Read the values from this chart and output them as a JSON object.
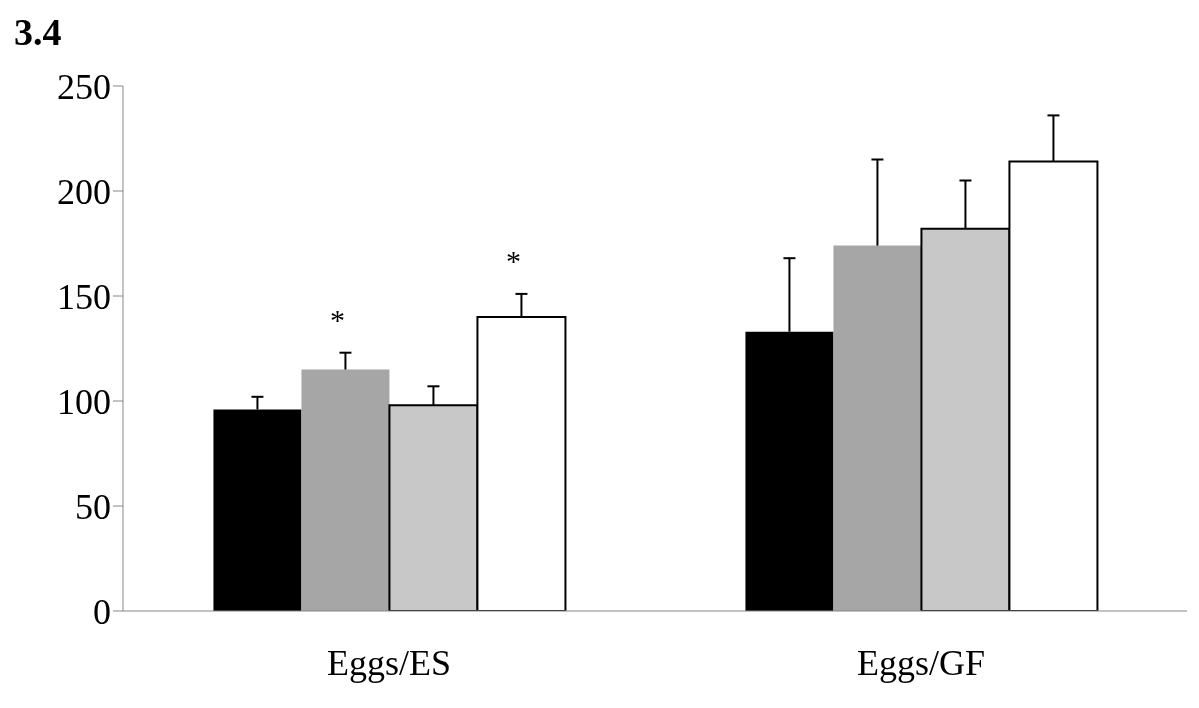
{
  "chart_data": {
    "type": "bar",
    "title": "3.4",
    "categories": [
      "Eggs/ES",
      "Eggs/GF"
    ],
    "series": [
      {
        "color": "#000000",
        "values": [
          96,
          133
        ],
        "errors": [
          [
            96,
            102
          ],
          [
            133,
            168
          ]
        ]
      },
      {
        "color": "#a6a6a6",
        "values": [
          115,
          174
        ],
        "errors": [
          [
            115,
            123
          ],
          [
            174,
            215
          ]
        ]
      },
      {
        "color": "#c8c8c8",
        "values": [
          98,
          182
        ],
        "errors": [
          [
            98,
            107
          ],
          [
            182,
            205
          ]
        ]
      },
      {
        "color": "#ffffff",
        "values": [
          140,
          214
        ],
        "errors": [
          [
            140,
            151
          ],
          [
            214,
            236
          ]
        ]
      }
    ],
    "ylim": [
      0,
      250
    ],
    "yticks": [
      0,
      50,
      100,
      150,
      200,
      250
    ],
    "annotations": [
      "*",
      "*"
    ]
  }
}
